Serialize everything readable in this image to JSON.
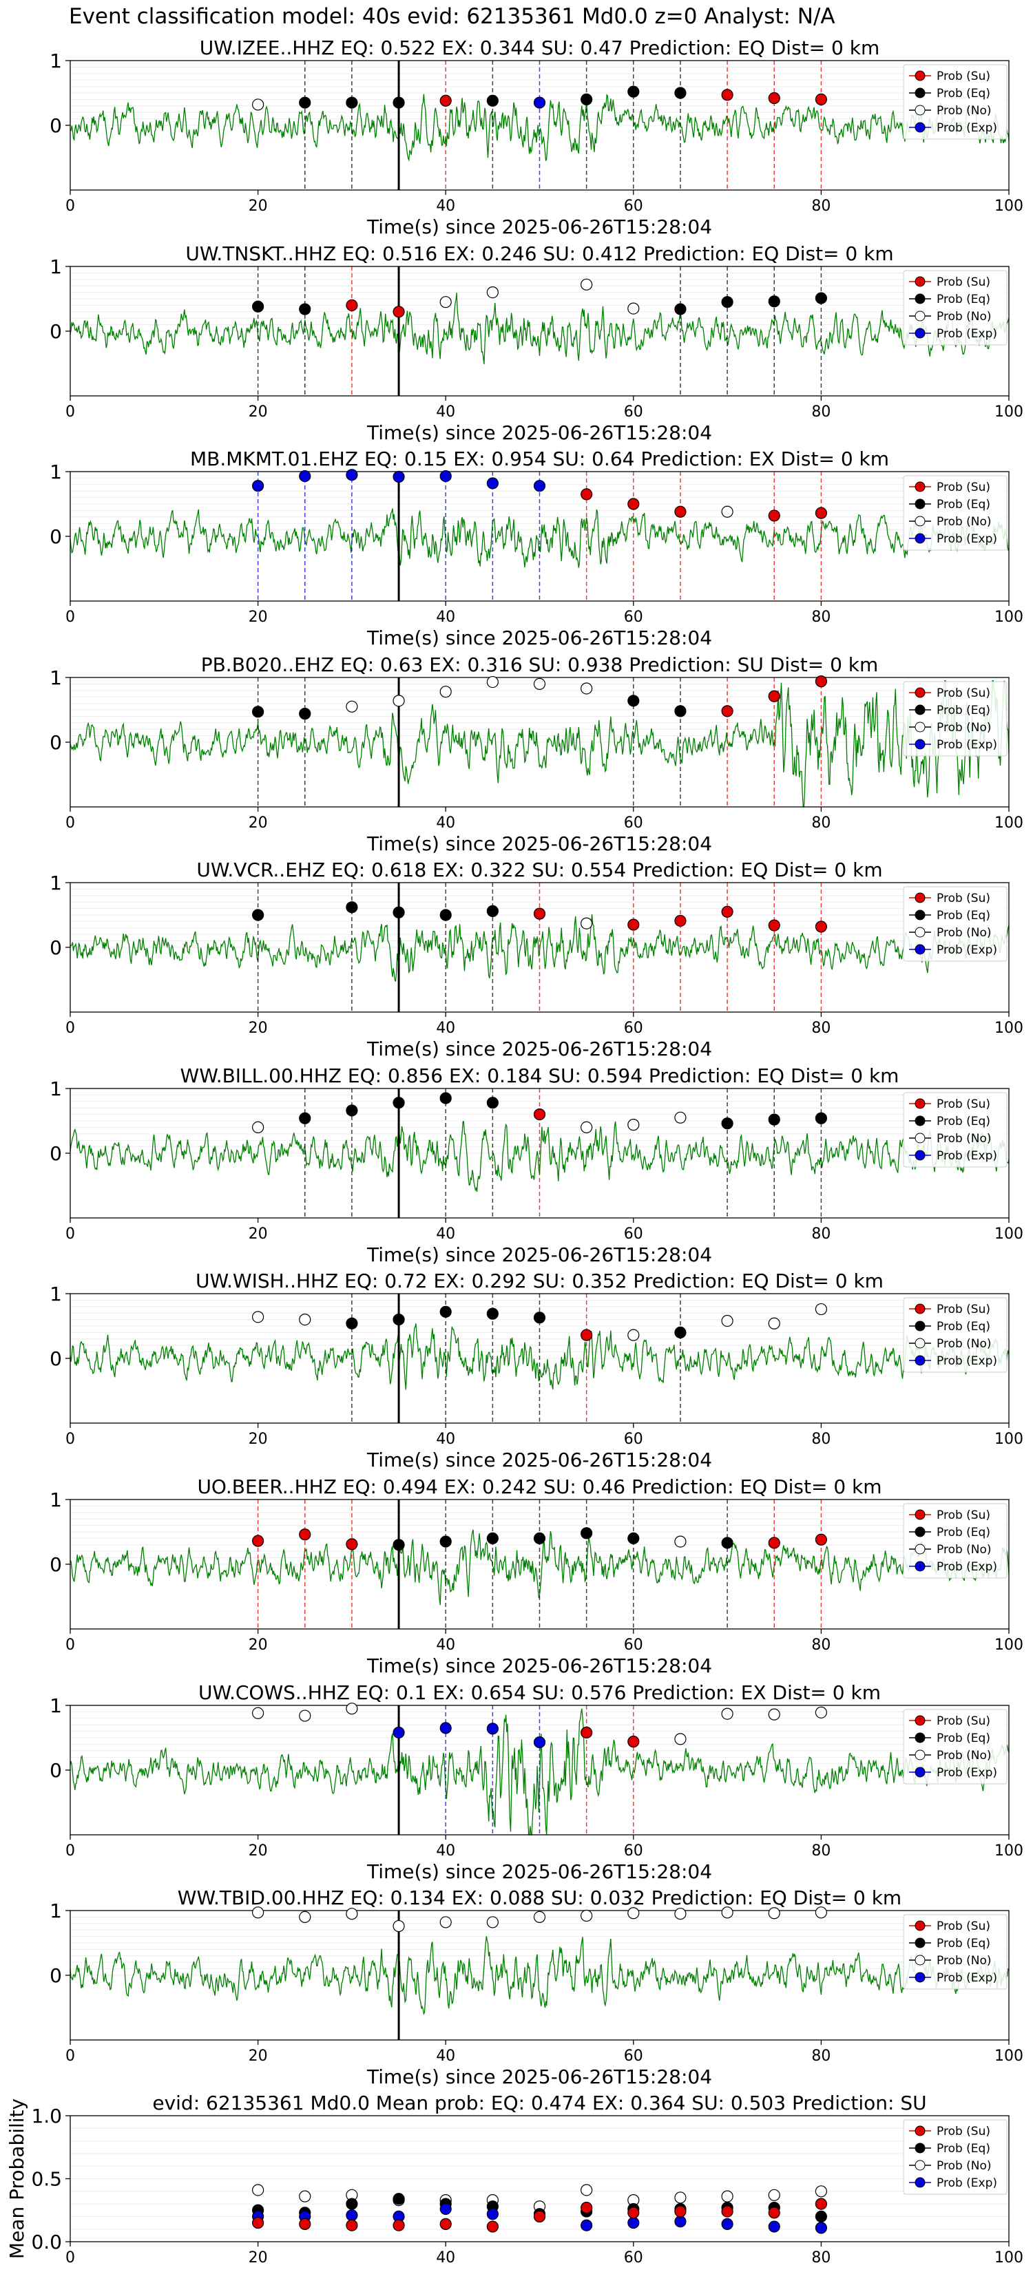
{
  "figure_title": "Event classification model: 40s evid: 62135361 Md0.0 z=0 Analyst: N/A",
  "legend": [
    "Prob (Su)",
    "Prob (Eq)",
    "Prob (No)",
    "Prob (Exp)"
  ],
  "colors": {
    "su": "#e00000",
    "eq": "#000000",
    "no": "#ffffff",
    "exp": "#0000dd",
    "trace": "#008000"
  },
  "chart_data": [
    {
      "type": "line",
      "title": "UW.IZEE..HHZ   EQ: 0.522  EX: 0.344  SU: 0.47   Prediction: EQ    Dist= 0 km",
      "xlabel": "Time(s) since 2025-06-26T15:28:04",
      "xlim": [
        0,
        100
      ],
      "ylim": [
        -1,
        1
      ],
      "xticks": [
        "0",
        "20",
        "40",
        "60",
        "80",
        "100"
      ],
      "yticks": [
        "0",
        "1"
      ],
      "grid": true,
      "legend_position": "top-right",
      "arrival_time": 35,
      "series": [
        {
          "class": "no",
          "x": [
            20
          ],
          "y": [
            0.32
          ]
        },
        {
          "class": "eq",
          "x": [
            25,
            30,
            35,
            45,
            55,
            60,
            65
          ],
          "y": [
            0.35,
            0.35,
            0.35,
            0.38,
            0.4,
            0.52,
            0.5
          ]
        },
        {
          "class": "su",
          "x": [
            40,
            70,
            75,
            80
          ],
          "y": [
            0.38,
            0.47,
            0.42,
            0.4
          ]
        },
        {
          "class": "exp",
          "x": [
            50
          ],
          "y": [
            0.35
          ]
        }
      ]
    },
    {
      "type": "line",
      "title": "UW.TNSKT..HHZ   EQ: 0.516  EX: 0.246  SU: 0.412   Prediction: EQ    Dist= 0 km",
      "xlabel": "Time(s) since 2025-06-26T15:28:04",
      "xlim": [
        0,
        100
      ],
      "ylim": [
        -1,
        1
      ],
      "xticks": [
        "0",
        "20",
        "40",
        "60",
        "80",
        "100"
      ],
      "yticks": [
        "0",
        "1"
      ],
      "grid": true,
      "legend_position": "top-right",
      "arrival_time": 35,
      "series": [
        {
          "class": "no",
          "x": [
            40,
            45,
            55,
            60
          ],
          "y": [
            0.45,
            0.6,
            0.72,
            0.35
          ]
        },
        {
          "class": "eq",
          "x": [
            20,
            25,
            65,
            70,
            75,
            80
          ],
          "y": [
            0.38,
            0.34,
            0.34,
            0.45,
            0.46,
            0.51
          ]
        },
        {
          "class": "su",
          "x": [
            30,
            35
          ],
          "y": [
            0.4,
            0.3
          ]
        }
      ]
    },
    {
      "type": "line",
      "title": "MB.MKMT.01.EHZ   EQ: 0.15  EX: 0.954  SU: 0.64   Prediction: EX    Dist= 0 km",
      "xlabel": "Time(s) since 2025-06-26T15:28:04",
      "xlim": [
        0,
        100
      ],
      "ylim": [
        -1,
        1
      ],
      "xticks": [
        "0",
        "20",
        "40",
        "60",
        "80",
        "100"
      ],
      "yticks": [
        "0",
        "1"
      ],
      "grid": true,
      "legend_position": "top-right",
      "arrival_time": 35,
      "series": [
        {
          "class": "no",
          "x": [
            70
          ],
          "y": [
            0.38
          ]
        },
        {
          "class": "su",
          "x": [
            55,
            60,
            65,
            75,
            80
          ],
          "y": [
            0.65,
            0.5,
            0.38,
            0.32,
            0.36
          ]
        },
        {
          "class": "exp",
          "x": [
            20,
            25,
            30,
            35,
            40,
            45,
            50
          ],
          "y": [
            0.78,
            0.93,
            0.95,
            0.92,
            0.93,
            0.82,
            0.78
          ]
        }
      ]
    },
    {
      "type": "line",
      "title": "PB.B020..EHZ   EQ: 0.63  EX: 0.316  SU: 0.938   Prediction: SU    Dist= 0 km",
      "xlabel": "Time(s) since 2025-06-26T15:28:04",
      "xlim": [
        0,
        100
      ],
      "ylim": [
        -1,
        1
      ],
      "xticks": [
        "0",
        "20",
        "40",
        "60",
        "80",
        "100"
      ],
      "yticks": [
        "0",
        "1"
      ],
      "grid": true,
      "legend_position": "top-right",
      "arrival_time": 35,
      "series": [
        {
          "class": "no",
          "x": [
            30,
            35,
            40,
            45,
            50,
            55
          ],
          "y": [
            0.55,
            0.64,
            0.78,
            0.93,
            0.9,
            0.83
          ]
        },
        {
          "class": "eq",
          "x": [
            20,
            25,
            60,
            65
          ],
          "y": [
            0.47,
            0.44,
            0.64,
            0.48
          ]
        },
        {
          "class": "su",
          "x": [
            70,
            75,
            80
          ],
          "y": [
            0.48,
            0.71,
            0.94
          ]
        }
      ]
    },
    {
      "type": "line",
      "title": "UW.VCR..EHZ   EQ: 0.618  EX: 0.322  SU: 0.554   Prediction: EQ    Dist= 0 km",
      "xlabel": "Time(s) since 2025-06-26T15:28:04",
      "xlim": [
        0,
        100
      ],
      "ylim": [
        -1,
        1
      ],
      "xticks": [
        "0",
        "20",
        "40",
        "60",
        "80",
        "100"
      ],
      "yticks": [
        "0",
        "1"
      ],
      "grid": true,
      "legend_position": "top-right",
      "arrival_time": 35,
      "series": [
        {
          "class": "no",
          "x": [
            55
          ],
          "y": [
            0.37
          ]
        },
        {
          "class": "eq",
          "x": [
            20,
            30,
            35,
            40,
            45
          ],
          "y": [
            0.5,
            0.62,
            0.54,
            0.5,
            0.56
          ]
        },
        {
          "class": "su",
          "x": [
            50,
            60,
            65,
            70,
            75,
            80
          ],
          "y": [
            0.52,
            0.35,
            0.41,
            0.55,
            0.34,
            0.32
          ]
        }
      ]
    },
    {
      "type": "line",
      "title": "WW.BILL.00.HHZ   EQ: 0.856  EX: 0.184  SU: 0.594   Prediction: EQ    Dist= 0 km",
      "xlabel": "Time(s) since 2025-06-26T15:28:04",
      "xlim": [
        0,
        100
      ],
      "ylim": [
        -1,
        1
      ],
      "xticks": [
        "0",
        "20",
        "40",
        "60",
        "80",
        "100"
      ],
      "yticks": [
        "0",
        "1"
      ],
      "grid": true,
      "legend_position": "top-right",
      "arrival_time": 35,
      "series": [
        {
          "class": "no",
          "x": [
            20,
            55,
            60,
            65
          ],
          "y": [
            0.4,
            0.4,
            0.44,
            0.55
          ]
        },
        {
          "class": "eq",
          "x": [
            25,
            30,
            35,
            40,
            45,
            70,
            75,
            80
          ],
          "y": [
            0.54,
            0.66,
            0.78,
            0.85,
            0.78,
            0.46,
            0.52,
            0.54
          ]
        },
        {
          "class": "su",
          "x": [
            50
          ],
          "y": [
            0.6
          ]
        }
      ]
    },
    {
      "type": "line",
      "title": "UW.WISH..HHZ   EQ: 0.72  EX: 0.292  SU: 0.352   Prediction: EQ    Dist= 0 km",
      "xlabel": "Time(s) since 2025-06-26T15:28:04",
      "xlim": [
        0,
        100
      ],
      "ylim": [
        -1,
        1
      ],
      "xticks": [
        "0",
        "20",
        "40",
        "60",
        "80",
        "100"
      ],
      "yticks": [
        "0",
        "1"
      ],
      "grid": true,
      "legend_position": "top-right",
      "arrival_time": 35,
      "series": [
        {
          "class": "no",
          "x": [
            20,
            25,
            60,
            70,
            75,
            80
          ],
          "y": [
            0.64,
            0.6,
            0.36,
            0.58,
            0.54,
            0.76
          ]
        },
        {
          "class": "eq",
          "x": [
            30,
            35,
            40,
            45,
            50,
            65
          ],
          "y": [
            0.54,
            0.6,
            0.72,
            0.69,
            0.63,
            0.4
          ]
        },
        {
          "class": "su",
          "x": [
            55
          ],
          "y": [
            0.36
          ]
        }
      ]
    },
    {
      "type": "line",
      "title": "UO.BEER..HHZ   EQ: 0.494  EX: 0.242  SU: 0.46   Prediction: EQ    Dist= 0 km",
      "xlabel": "Time(s) since 2025-06-26T15:28:04",
      "xlim": [
        0,
        100
      ],
      "ylim": [
        -1,
        1
      ],
      "xticks": [
        "0",
        "20",
        "40",
        "60",
        "80",
        "100"
      ],
      "yticks": [
        "0",
        "1"
      ],
      "grid": true,
      "legend_position": "top-right",
      "arrival_time": 35,
      "series": [
        {
          "class": "no",
          "x": [
            65
          ],
          "y": [
            0.35
          ]
        },
        {
          "class": "eq",
          "x": [
            35,
            40,
            45,
            50,
            55,
            60,
            70
          ],
          "y": [
            0.3,
            0.35,
            0.4,
            0.4,
            0.48,
            0.4,
            0.33
          ]
        },
        {
          "class": "su",
          "x": [
            20,
            25,
            30,
            75,
            80
          ],
          "y": [
            0.36,
            0.46,
            0.31,
            0.33,
            0.38
          ]
        }
      ]
    },
    {
      "type": "line",
      "title": "UW.COWS..HHZ   EQ: 0.1  EX: 0.654  SU: 0.576   Prediction: EX    Dist= 0 km",
      "xlabel": "Time(s) since 2025-06-26T15:28:04",
      "xlim": [
        0,
        100
      ],
      "ylim": [
        -1,
        1
      ],
      "xticks": [
        "0",
        "20",
        "40",
        "60",
        "80",
        "100"
      ],
      "yticks": [
        "0",
        "1"
      ],
      "grid": true,
      "legend_position": "top-right",
      "arrival_time": 35,
      "series": [
        {
          "class": "no",
          "x": [
            20,
            25,
            30,
            65,
            70,
            75,
            80
          ],
          "y": [
            0.88,
            0.84,
            0.95,
            0.48,
            0.87,
            0.86,
            0.89
          ]
        },
        {
          "class": "su",
          "x": [
            55,
            60
          ],
          "y": [
            0.58,
            0.44
          ]
        },
        {
          "class": "exp",
          "x": [
            35,
            40,
            45,
            50
          ],
          "y": [
            0.58,
            0.65,
            0.64,
            0.43
          ]
        }
      ]
    },
    {
      "type": "line",
      "title": "WW.TBID.00.HHZ   EQ: 0.134  EX: 0.088  SU: 0.032   Prediction: EQ    Dist= 0 km",
      "xlabel": "Time(s) since 2025-06-26T15:28:04",
      "xlim": [
        0,
        100
      ],
      "ylim": [
        -1,
        1
      ],
      "xticks": [
        "0",
        "20",
        "40",
        "60",
        "80",
        "100"
      ],
      "yticks": [
        "0",
        "1"
      ],
      "grid": true,
      "legend_position": "top-right",
      "arrival_time": 35,
      "series": [
        {
          "class": "no",
          "x": [
            20,
            25,
            30,
            35,
            40,
            45,
            50,
            55,
            60,
            65,
            70,
            75,
            80
          ],
          "y": [
            0.97,
            0.9,
            0.95,
            0.76,
            0.82,
            0.82,
            0.9,
            0.92,
            0.96,
            0.95,
            0.97,
            0.96,
            0.97
          ]
        }
      ]
    },
    {
      "type": "scatter",
      "title": "evid: 62135361  Md0.0   Mean prob:   EQ: 0.474  EX: 0.364  SU: 0.503   Prediction: SU",
      "xlabel": "",
      "ylabel": "Mean Probability",
      "xlim": [
        0,
        100
      ],
      "ylim": [
        0,
        1
      ],
      "xticks": [
        "0",
        "20",
        "40",
        "60",
        "80",
        "100"
      ],
      "yticks": [
        "0.0",
        "0.5",
        "1.0"
      ],
      "grid": true,
      "legend_position": "top-right",
      "series": [
        {
          "class": "no",
          "x": [
            20,
            25,
            30,
            35,
            40,
            45,
            50,
            55,
            60,
            65,
            70,
            75,
            80
          ],
          "y": [
            0.41,
            0.36,
            0.37,
            0.33,
            0.33,
            0.33,
            0.28,
            0.41,
            0.33,
            0.35,
            0.36,
            0.37,
            0.4
          ]
        },
        {
          "class": "eq",
          "x": [
            20,
            25,
            30,
            35,
            40,
            45,
            50,
            55,
            60,
            65,
            70,
            75,
            80
          ],
          "y": [
            0.25,
            0.23,
            0.3,
            0.34,
            0.3,
            0.28,
            0.22,
            0.24,
            0.26,
            0.26,
            0.27,
            0.27,
            0.2
          ]
        },
        {
          "class": "exp",
          "x": [
            20,
            25,
            30,
            35,
            40,
            45,
            50,
            55,
            60,
            65,
            70,
            75,
            80
          ],
          "y": [
            0.2,
            0.2,
            0.21,
            0.2,
            0.26,
            0.22,
            0.2,
            0.13,
            0.15,
            0.16,
            0.14,
            0.12,
            0.11
          ]
        },
        {
          "class": "su",
          "x": [
            20,
            25,
            30,
            35,
            40,
            45,
            50,
            55,
            60,
            65,
            70,
            75,
            80
          ],
          "y": [
            0.15,
            0.14,
            0.13,
            0.13,
            0.14,
            0.12,
            0.2,
            0.27,
            0.23,
            0.24,
            0.24,
            0.23,
            0.3
          ]
        }
      ]
    }
  ]
}
